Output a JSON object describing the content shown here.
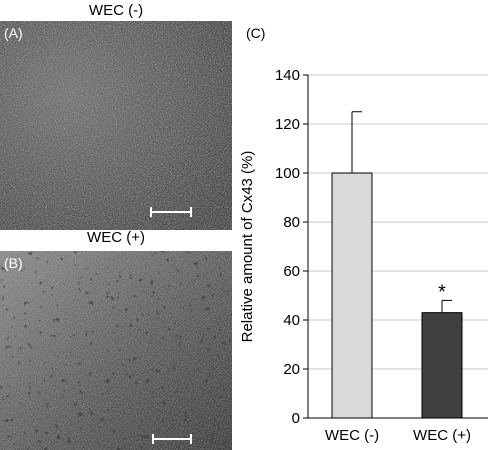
{
  "panels": {
    "a": {
      "letter": "(A)",
      "title": "WEC (-)"
    },
    "b": {
      "letter": "(B)",
      "title": "WEC (+)"
    },
    "c": {
      "letter": "(C)"
    }
  },
  "colors": {
    "bar_control": "#d9d9d9",
    "bar_treated": "#404040",
    "grid": "#c8c8c8",
    "stain": "#a050b0"
  },
  "chart_data": {
    "type": "bar",
    "categories": [
      "WEC (-)",
      "WEC (+)"
    ],
    "values": [
      100,
      43
    ],
    "errors": [
      25,
      5
    ],
    "significance": [
      "",
      "*"
    ],
    "ylabel": "Relative amount of Cx43 (%)",
    "ylim": [
      0,
      140
    ],
    "yticks": [
      0,
      20,
      40,
      60,
      80,
      100,
      120,
      140
    ],
    "grid": true,
    "legend": "none"
  }
}
